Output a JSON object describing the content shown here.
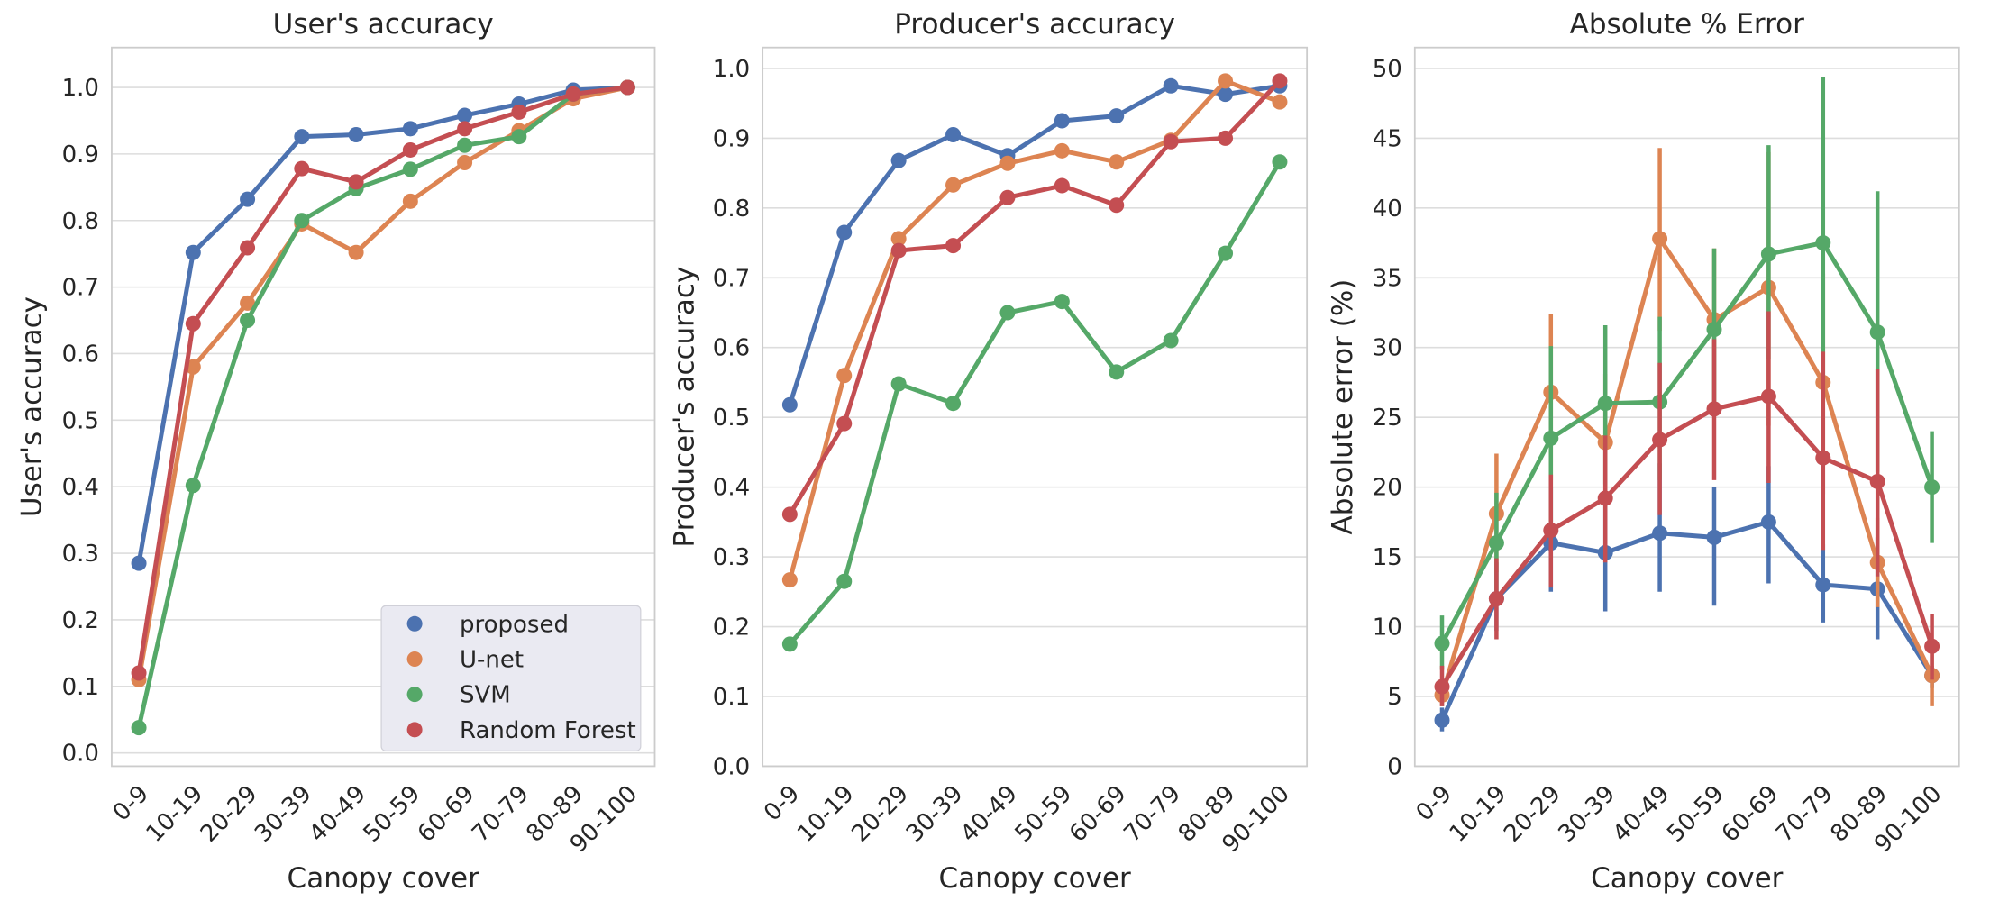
{
  "colors": {
    "proposed": "#4c72b0",
    "unet": "#dd8452",
    "svm": "#55a868",
    "rf": "#c44e52",
    "grid": "#dddddd",
    "frame": "#cccccc",
    "legend_bg": "#eaeaf2"
  },
  "legend": {
    "entries": [
      "proposed",
      "U-net",
      "SVM",
      "Random Forest"
    ],
    "placement": "lower-right"
  },
  "chart_data": [
    {
      "type": "line",
      "title": "User's accuracy",
      "xlabel": "Canopy cover",
      "ylabel": "User's accuracy",
      "categories": [
        "0-9",
        "10-19",
        "20-29",
        "30-39",
        "40-49",
        "50-59",
        "60-69",
        "70-79",
        "80-89",
        "90-100"
      ],
      "ylim": [
        -0.02,
        1.06
      ],
      "yticks": [
        "0.0",
        "0.1",
        "0.2",
        "0.3",
        "0.4",
        "0.5",
        "0.6",
        "0.7",
        "0.8",
        "0.9",
        "1.0"
      ],
      "grid": true,
      "series": [
        {
          "name": "proposed",
          "values": [
            0.285,
            0.752,
            0.832,
            0.926,
            0.929,
            0.938,
            0.958,
            0.975,
            0.996,
            1.0
          ]
        },
        {
          "name": "U-net",
          "values": [
            0.11,
            0.58,
            0.676,
            0.795,
            0.752,
            0.829,
            0.887,
            0.935,
            0.983,
            1.0
          ]
        },
        {
          "name": "SVM",
          "values": [
            0.038,
            0.402,
            0.65,
            0.8,
            0.848,
            0.877,
            0.913,
            0.926,
            0.99,
            1.0
          ]
        },
        {
          "name": "Random Forest",
          "values": [
            0.12,
            0.645,
            0.759,
            0.878,
            0.858,
            0.906,
            0.938,
            0.963,
            0.99,
            1.0
          ]
        }
      ]
    },
    {
      "type": "line",
      "title": "Producer's accuracy",
      "xlabel": "Canopy cover",
      "ylabel": "Producer's accuracy",
      "categories": [
        "0-9",
        "10-19",
        "20-29",
        "30-39",
        "40-49",
        "50-59",
        "60-69",
        "70-79",
        "80-89",
        "90-100"
      ],
      "ylim": [
        0.0,
        1.03
      ],
      "yticks": [
        "0.0",
        "0.1",
        "0.2",
        "0.3",
        "0.4",
        "0.5",
        "0.6",
        "0.7",
        "0.8",
        "0.9",
        "1.0"
      ],
      "grid": true,
      "series": [
        {
          "name": "proposed",
          "values": [
            0.518,
            0.765,
            0.868,
            0.905,
            0.875,
            0.925,
            0.932,
            0.975,
            0.963,
            0.975
          ]
        },
        {
          "name": "U-net",
          "values": [
            0.267,
            0.56,
            0.756,
            0.833,
            0.864,
            0.882,
            0.866,
            0.897,
            0.982,
            0.952
          ]
        },
        {
          "name": "SVM",
          "values": [
            0.175,
            0.265,
            0.548,
            0.52,
            0.65,
            0.666,
            0.565,
            0.61,
            0.735,
            0.866
          ]
        },
        {
          "name": "Random Forest",
          "values": [
            0.361,
            0.491,
            0.739,
            0.746,
            0.815,
            0.832,
            0.804,
            0.895,
            0.9,
            0.982
          ]
        }
      ]
    },
    {
      "type": "line",
      "title": "Absolute % Error",
      "xlabel": "Canopy cover",
      "ylabel": "Absolute error (%)",
      "categories": [
        "0-9",
        "10-19",
        "20-29",
        "30-39",
        "40-49",
        "50-59",
        "60-69",
        "70-79",
        "80-89",
        "90-100"
      ],
      "ylim": [
        0,
        51.5
      ],
      "yticks": [
        "0",
        "5",
        "10",
        "15",
        "20",
        "25",
        "30",
        "35",
        "40",
        "45",
        "50"
      ],
      "grid": true,
      "series": [
        {
          "name": "proposed",
          "values": [
            3.3,
            12.0,
            16.0,
            15.3,
            16.7,
            16.4,
            17.5,
            13.0,
            12.7,
            6.5
          ],
          "err_low": [
            2.5,
            9.7,
            12.5,
            11.1,
            12.5,
            11.5,
            13.1,
            10.3,
            9.1,
            5.6
          ],
          "err_high": [
            4.2,
            14.6,
            20.0,
            19.6,
            21.7,
            20.0,
            21.5,
            15.9,
            16.4,
            7.2
          ]
        },
        {
          "name": "U-net",
          "values": [
            5.1,
            18.1,
            26.8,
            23.2,
            37.8,
            32.0,
            34.3,
            27.5,
            14.6,
            6.5
          ],
          "err_low": [
            4.3,
            13.9,
            20.5,
            18.7,
            31.2,
            26.2,
            24.4,
            19.5,
            11.4,
            4.3
          ],
          "err_high": [
            6.2,
            22.4,
            32.4,
            28.1,
            44.3,
            37.1,
            44.0,
            35.3,
            17.8,
            8.9
          ]
        },
        {
          "name": "SVM",
          "values": [
            8.8,
            16.0,
            23.5,
            26.0,
            26.1,
            31.3,
            36.7,
            37.5,
            31.1,
            20.0
          ],
          "err_low": [
            6.9,
            11.8,
            16.0,
            20.2,
            20.5,
            25.3,
            29.2,
            26.1,
            21.1,
            16.0
          ],
          "err_high": [
            10.8,
            19.6,
            30.1,
            31.6,
            32.2,
            37.1,
            44.5,
            49.4,
            41.2,
            24.0
          ]
        },
        {
          "name": "Random Forest",
          "values": [
            5.7,
            12.0,
            16.9,
            19.2,
            23.4,
            25.6,
            26.5,
            22.1,
            20.4,
            8.6
          ],
          "err_low": [
            4.3,
            9.1,
            12.8,
            14.6,
            18.0,
            20.5,
            20.3,
            15.5,
            13.6,
            6.2
          ],
          "err_high": [
            7.2,
            14.9,
            20.9,
            23.7,
            28.9,
            30.6,
            32.6,
            29.7,
            28.5,
            10.9
          ]
        }
      ]
    }
  ]
}
